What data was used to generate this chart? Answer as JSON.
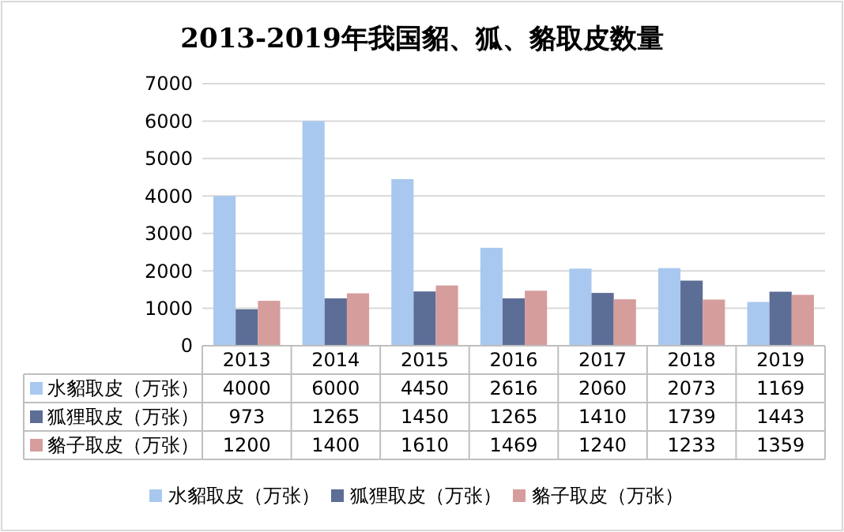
{
  "chart_data": {
    "type": "bar",
    "title": "2013-2019年我国貂、狐、貉取皮数量",
    "categories": [
      "2013",
      "2014",
      "2015",
      "2016",
      "2017",
      "2018",
      "2019"
    ],
    "series": [
      {
        "name": "水貂取皮（万张）",
        "color": "#a9c8ef",
        "values": [
          4000,
          6000,
          4450,
          2616,
          2060,
          2073,
          1169
        ]
      },
      {
        "name": "狐狸取皮（万张）",
        "color": "#5c6d96",
        "values": [
          973,
          1265,
          1450,
          1265,
          1410,
          1739,
          1443
        ]
      },
      {
        "name": "貉子取皮（万张）",
        "color": "#d59d9c",
        "values": [
          1200,
          1400,
          1610,
          1469,
          1240,
          1233,
          1359
        ]
      }
    ],
    "ylim": [
      0,
      7000
    ],
    "yticks": [
      0,
      1000,
      2000,
      3000,
      4000,
      5000,
      6000,
      7000
    ],
    "grid": "y",
    "legend": "bottom",
    "data_labels": true
  }
}
